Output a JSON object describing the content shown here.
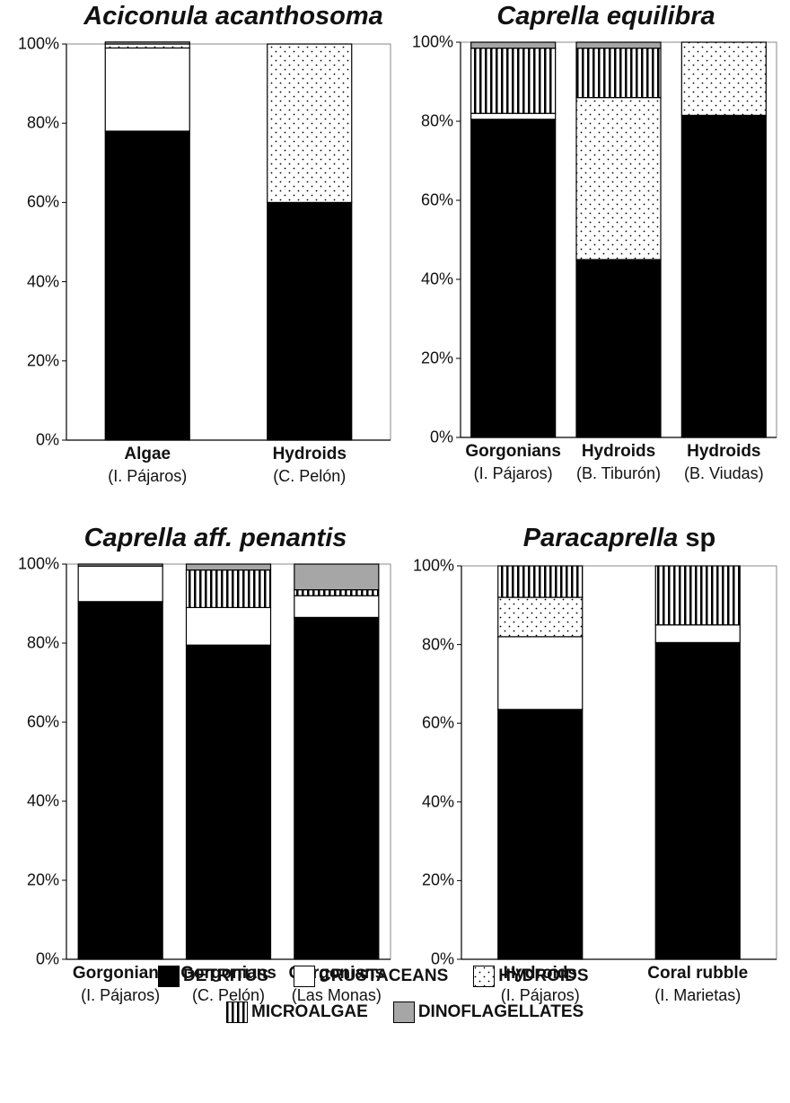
{
  "colors": {
    "Detritus": "#000000",
    "Crustaceans": "#ffffff",
    "Hydroids": "pattern-dots",
    "Microalgae": "pattern-vertical-stripes",
    "Dinoflagellates": "#a6a6a6"
  },
  "legend": {
    "items": [
      "DETRITUS",
      "CRUSTACEANS",
      "HYDROIDS",
      "MICROALGAE",
      "DINOFLAGELLATES"
    ]
  },
  "chart_data": [
    {
      "type": "bar",
      "stacked": true,
      "title": "Aciconula acanthosoma",
      "title_suffix": "",
      "yticks": [
        "0%",
        "20%",
        "40%",
        "60%",
        "80%",
        "100%"
      ],
      "ylim": [
        0,
        100
      ],
      "categories": [
        {
          "name": "Algae",
          "location": "(I. Pájaros)"
        },
        {
          "name": "Hydroids",
          "location": "(C. Pelón)"
        }
      ],
      "series": [
        {
          "name": "DETRITUS",
          "values": [
            78,
            60
          ]
        },
        {
          "name": "CRUSTACEANS",
          "values": [
            21,
            0
          ]
        },
        {
          "name": "HYDROIDS",
          "values": [
            1,
            40
          ]
        },
        {
          "name": "MICROALGAE",
          "values": [
            0,
            0
          ]
        },
        {
          "name": "DINOFLAGELLATES",
          "values": [
            0.5,
            0
          ]
        }
      ]
    },
    {
      "type": "bar",
      "stacked": true,
      "title": "Caprella equilibra",
      "title_suffix": "",
      "yticks": [
        "0%",
        "20%",
        "40%",
        "60%",
        "80%",
        "100%"
      ],
      "ylim": [
        0,
        100
      ],
      "categories": [
        {
          "name": "Gorgonians",
          "location": "(I. Pájaros)"
        },
        {
          "name": "Hydroids",
          "location": "(B. Tiburón)"
        },
        {
          "name": "Hydroids",
          "location": "(B. Viudas)"
        }
      ],
      "series": [
        {
          "name": "DETRITUS",
          "values": [
            80.5,
            45,
            81.5
          ]
        },
        {
          "name": "CRUSTACEANS",
          "values": [
            1.5,
            0,
            0
          ]
        },
        {
          "name": "HYDROIDS",
          "values": [
            0,
            41,
            18.5
          ]
        },
        {
          "name": "MICROALGAE",
          "values": [
            16.5,
            12.5,
            0
          ]
        },
        {
          "name": "DINOFLAGELLATES",
          "values": [
            1.5,
            1.5,
            0
          ]
        }
      ]
    },
    {
      "type": "bar",
      "stacked": true,
      "title": "Caprella aff. penantis",
      "title_suffix": "",
      "yticks": [
        "0%",
        "20%",
        "40%",
        "60%",
        "80%",
        "100%"
      ],
      "ylim": [
        0,
        100
      ],
      "categories": [
        {
          "name": "Gorgonians",
          "location": "(I. Pájaros)"
        },
        {
          "name": "Gorgonians",
          "location": "(C. Pelón)"
        },
        {
          "name": "Gorgonians",
          "location": "(Las Monas)"
        }
      ],
      "series": [
        {
          "name": "DETRITUS",
          "values": [
            90.5,
            79.5,
            86.5
          ]
        },
        {
          "name": "CRUSTACEANS",
          "values": [
            9,
            9.5,
            5.5
          ]
        },
        {
          "name": "HYDROIDS",
          "values": [
            0,
            0,
            0
          ]
        },
        {
          "name": "MICROALGAE",
          "values": [
            0,
            9.5,
            1.5
          ]
        },
        {
          "name": "DINOFLAGELLATES",
          "values": [
            0.5,
            1.5,
            6.5
          ]
        }
      ]
    },
    {
      "type": "bar",
      "stacked": true,
      "title": "Paracaprella",
      "title_suffix": " sp",
      "yticks": [
        "0%",
        "20%",
        "40%",
        "60%",
        "80%",
        "100%"
      ],
      "ylim": [
        0,
        100
      ],
      "categories": [
        {
          "name": "Hydroids",
          "location": "(I. Pájaros)"
        },
        {
          "name": "Coral rubble",
          "location": "(I. Marietas)"
        }
      ],
      "series": [
        {
          "name": "DETRITUS",
          "values": [
            63.5,
            80.5
          ]
        },
        {
          "name": "CRUSTACEANS",
          "values": [
            18.5,
            4.5
          ]
        },
        {
          "name": "HYDROIDS",
          "values": [
            10,
            0
          ]
        },
        {
          "name": "MICROALGAE",
          "values": [
            8,
            15
          ]
        },
        {
          "name": "DINOFLAGELLATES",
          "values": [
            0,
            0
          ]
        }
      ]
    }
  ]
}
